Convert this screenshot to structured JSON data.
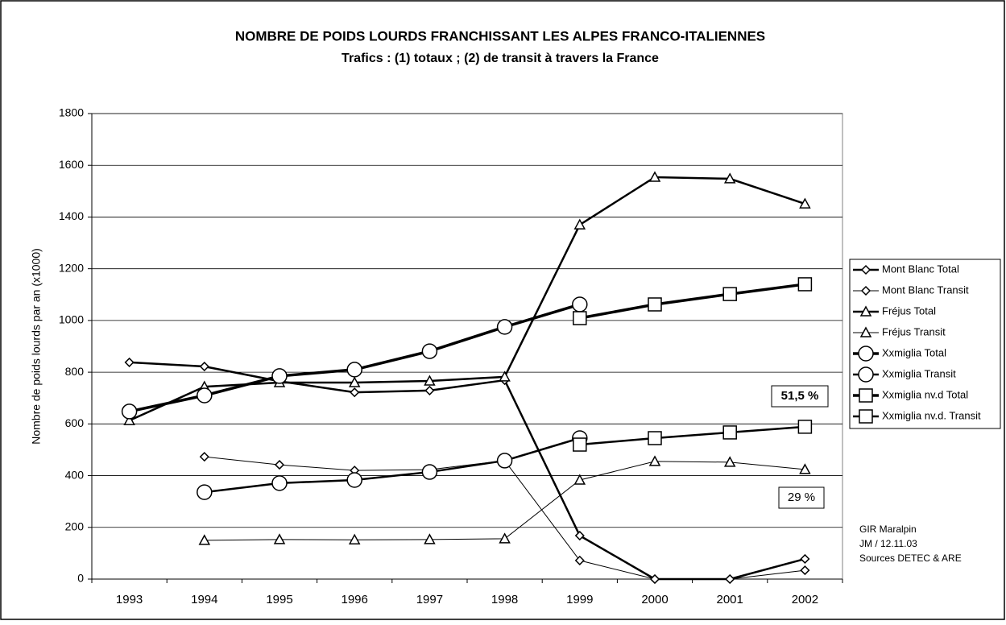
{
  "chart_data": {
    "type": "line",
    "title": "NOMBRE DE POIDS LOURDS FRANCHISSANT LES ALPES FRANCO-ITALIENNES",
    "subtitle": "Trafics : (1) totaux ; (2) de transit à travers la France",
    "y_label": "Nombre de poids lourds par an (x1000)",
    "categories": [
      "1993",
      "1994",
      "1995",
      "1996",
      "1997",
      "1998",
      "1999",
      "2000",
      "2001",
      "2002"
    ],
    "ylim": [
      0,
      1800
    ],
    "yticks": [
      0,
      200,
      400,
      600,
      800,
      1000,
      1200,
      1400,
      1600,
      1800
    ],
    "grid": true,
    "legend_position": "right",
    "series": [
      {
        "name": "Mont Blanc Total",
        "color": "#000000",
        "marker": "diamond",
        "line_width": 2.5,
        "values": [
          838,
          822,
          765,
          722,
          729,
          769,
          168,
          0,
          0,
          78
        ]
      },
      {
        "name": "Mont Blanc Transit",
        "color": "#000000",
        "marker": "diamond",
        "line_width": 1,
        "values": [
          null,
          473,
          442,
          420,
          423,
          458,
          72,
          0,
          0,
          34
        ]
      },
      {
        "name": "Fréjus Total",
        "color": "#000000",
        "marker": "triangle",
        "line_width": 2.5,
        "values": [
          613,
          744,
          760,
          760,
          766,
          782,
          1370,
          1554,
          1548,
          1451
        ]
      },
      {
        "name": "Fréjus Transit",
        "color": "#000000",
        "marker": "triangle",
        "line_width": 1,
        "values": [
          null,
          150,
          153,
          152,
          153,
          156,
          383,
          455,
          452,
          424
        ]
      },
      {
        "name": "Xxmiglia Total",
        "color": "#000000",
        "marker": "circle",
        "line_width": 3.5,
        "values": [
          648,
          710,
          785,
          810,
          881,
          975,
          1062,
          null,
          null,
          null
        ]
      },
      {
        "name": "Xxmiglia Transit",
        "color": "#000000",
        "marker": "circle",
        "line_width": 2.5,
        "values": [
          null,
          336,
          371,
          383,
          414,
          458,
          545,
          null,
          null,
          null
        ]
      },
      {
        "name": "Xxmiglia nv.d Total",
        "color": "#000000",
        "marker": "square",
        "line_width": 3.5,
        "values": [
          null,
          null,
          null,
          null,
          null,
          null,
          1009,
          1062,
          1102,
          1140
        ]
      },
      {
        "name": "Xxmiglia nv.d. Transit",
        "color": "#000000",
        "marker": "square",
        "line_width": 2.5,
        "values": [
          null,
          null,
          null,
          null,
          null,
          null,
          520,
          545,
          567,
          589
        ]
      }
    ],
    "annotations": [
      "51,5 %",
      "29 %"
    ],
    "source": [
      "GIR Maralpin",
      "JM / 12.11.03",
      "Sources DETEC & ARE"
    ]
  }
}
